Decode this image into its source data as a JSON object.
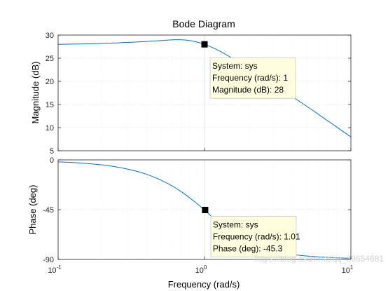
{
  "chart_data": {
    "type": "line",
    "title": "Bode Diagram",
    "xlabel": "Frequency  (rad/s)",
    "x_scale": "log",
    "xlim": [
      0.1,
      10
    ],
    "x_ticks": [
      {
        "value": 0.1,
        "base": "10",
        "exp": "-1"
      },
      {
        "value": 1,
        "base": "10",
        "exp": "0"
      },
      {
        "value": 10,
        "base": "10",
        "exp": "1"
      }
    ],
    "grid": true,
    "line_color": "#0072bd",
    "panels": [
      {
        "id": "magnitude",
        "ylabel": "Magnitude (dB)",
        "ylim": [
          5,
          30
        ],
        "y_ticks": [
          5,
          10,
          15,
          20,
          25,
          30
        ],
        "series": {
          "x": [
            0.1,
            0.126,
            0.158,
            0.2,
            0.251,
            0.316,
            0.398,
            0.5,
            0.631,
            0.794,
            1,
            1.26,
            1.58,
            2,
            2.51,
            3.16,
            3.98,
            5,
            6.31,
            7.94,
            10
          ],
          "values": [
            28.0,
            28.05,
            28.1,
            28.2,
            28.3,
            28.45,
            28.6,
            28.8,
            29.0,
            28.8,
            28.0,
            26.6,
            24.8,
            22.8,
            20.8,
            18.8,
            16.7,
            14.6,
            12.4,
            10.2,
            8.0
          ]
        },
        "datatip": {
          "x": 1,
          "y": 28,
          "lines": [
            "System: sys",
            "Frequency (rad/s): 1",
            "Magnitude (dB): 28"
          ]
        }
      },
      {
        "id": "phase",
        "ylabel": "Phase (deg)",
        "ylim": [
          -90,
          0
        ],
        "y_ticks": [
          0,
          -45,
          -90
        ],
        "series": {
          "x": [
            0.1,
            0.126,
            0.158,
            0.2,
            0.251,
            0.316,
            0.398,
            0.5,
            0.631,
            0.794,
            1,
            1.26,
            1.58,
            2,
            2.51,
            3.16,
            3.98,
            5,
            6.31,
            7.94,
            10
          ],
          "values": [
            -1.8,
            -2.4,
            -3.3,
            -4.6,
            -6.4,
            -9.1,
            -12.8,
            -18.1,
            -25.2,
            -34.4,
            -45.3,
            -57.7,
            -68.6,
            -76.2,
            -80.9,
            -83.8,
            -85.6,
            -86.9,
            -87.8,
            -88.5,
            -89.0
          ]
        },
        "datatip": {
          "x": 1.01,
          "y": -45.3,
          "lines": [
            "System: sys",
            "Frequency (rad/s): 1.01",
            "Phase (deg): -45.3"
          ]
        }
      }
    ]
  },
  "watermark": "https://blog.csdn.net/qq_39654681"
}
